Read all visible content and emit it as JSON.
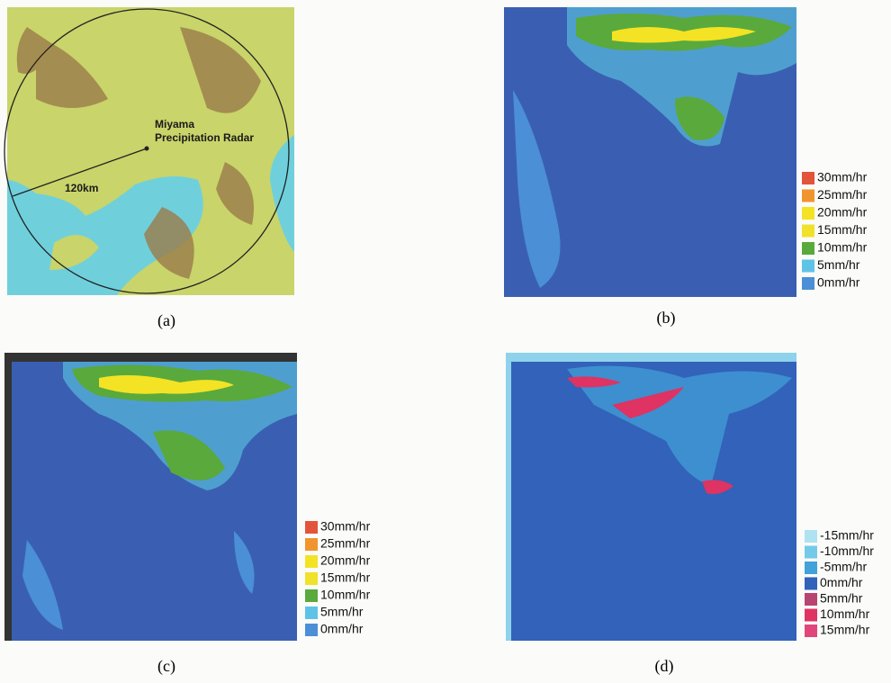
{
  "panels": [
    {
      "label": "(a)",
      "site_name": "Miyama",
      "site_type": "Precipitation Radar",
      "range": "120km"
    },
    {
      "label": "(b)",
      "legend": [
        {
          "label": "30mm/hr",
          "color": "#e2553a"
        },
        {
          "label": "25mm/hr",
          "color": "#f0952e"
        },
        {
          "label": "20mm/hr",
          "color": "#f3e324"
        },
        {
          "label": "15mm/hr",
          "color": "#f0e12a"
        },
        {
          "label": "10mm/hr",
          "color": "#5aa93c"
        },
        {
          "label": "5mm/hr",
          "color": "#5ec3e6"
        },
        {
          "label": "0mm/hr",
          "color": "#4b8fd6"
        }
      ]
    },
    {
      "label": "(c)",
      "legend": [
        {
          "label": "30mm/hr",
          "color": "#e2553a"
        },
        {
          "label": "25mm/hr",
          "color": "#f0952e"
        },
        {
          "label": "20mm/hr",
          "color": "#f3e324"
        },
        {
          "label": "15mm/hr",
          "color": "#f0e12a"
        },
        {
          "label": "10mm/hr",
          "color": "#5aa93c"
        },
        {
          "label": "5mm/hr",
          "color": "#5ec3e6"
        },
        {
          "label": "0mm/hr",
          "color": "#4b8fd6"
        }
      ]
    },
    {
      "label": "(d)",
      "legend": [
        {
          "label": "-15mm/hr",
          "color": "#b0e2f2"
        },
        {
          "label": "-10mm/hr",
          "color": "#74cbe9"
        },
        {
          "label": "-5mm/hr",
          "color": "#42a2da"
        },
        {
          "label": "0mm/hr",
          "color": "#3262b9"
        },
        {
          "label": "5mm/hr",
          "color": "#b84472"
        },
        {
          "label": "10mm/hr",
          "color": "#de3363"
        },
        {
          "label": "15mm/hr",
          "color": "#e0467c"
        }
      ]
    }
  ]
}
